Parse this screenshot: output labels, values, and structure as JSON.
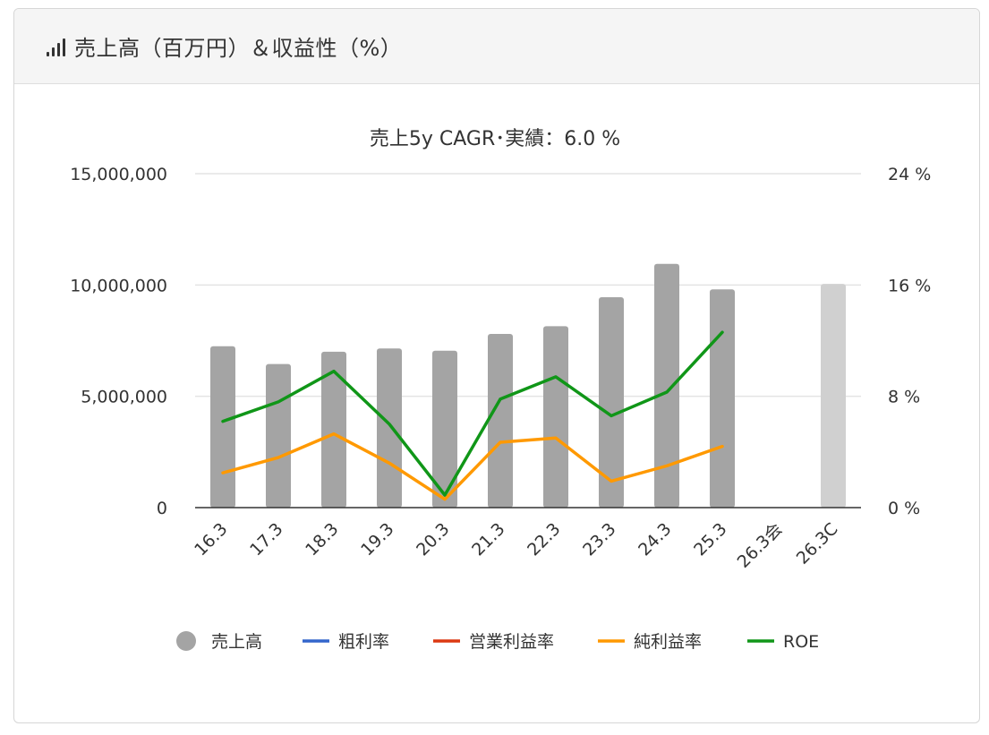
{
  "header": {
    "title": "売上高（百万円）＆収益性（%）",
    "icon": "signal-bars-icon"
  },
  "chart_data": {
    "type": "bar",
    "title": "売上5y CAGR･実績：6.0 %",
    "categories": [
      "16.3",
      "17.3",
      "18.3",
      "19.3",
      "20.3",
      "21.3",
      "22.3",
      "23.3",
      "24.3",
      "25.3",
      "26.3会",
      "26.3C"
    ],
    "left_axis": {
      "min": 0,
      "max": 15000000,
      "ticks": [
        "0",
        "5,000,000",
        "10,000,000",
        "15,000,000"
      ]
    },
    "right_axis": {
      "min": 0,
      "max": 24,
      "ticks": [
        "0 %",
        "8 %",
        "16 %",
        "24 %"
      ]
    },
    "bar_series": {
      "name": "売上高",
      "values": [
        7250000,
        6450000,
        7000000,
        7150000,
        7050000,
        7800000,
        8150000,
        9450000,
        10950000,
        9800000,
        null,
        10050000
      ],
      "colors": [
        "#a4a4a4",
        "#a4a4a4",
        "#a4a4a4",
        "#a4a4a4",
        "#a4a4a4",
        "#a4a4a4",
        "#a4a4a4",
        "#a4a4a4",
        "#a4a4a4",
        "#a4a4a4",
        "#a4a4a4",
        "#d0d0d0"
      ]
    },
    "line_series": [
      {
        "name": "粗利率",
        "color": "#3366cc",
        "values": [
          null,
          null,
          null,
          null,
          null,
          null,
          null,
          null,
          null,
          null,
          null,
          null
        ]
      },
      {
        "name": "営業利益率",
        "color": "#dc3912",
        "values": [
          null,
          null,
          null,
          null,
          null,
          null,
          null,
          null,
          null,
          null,
          null,
          null
        ]
      },
      {
        "name": "純利益率",
        "color": "#ff9900",
        "values": [
          2.5,
          3.6,
          5.3,
          3.2,
          0.6,
          4.7,
          5.0,
          1.9,
          3.0,
          4.4,
          null,
          null
        ]
      },
      {
        "name": "ROE",
        "color": "#109618",
        "values": [
          6.2,
          7.6,
          9.8,
          6.0,
          0.9,
          7.8,
          9.4,
          6.6,
          8.3,
          12.6,
          null,
          null
        ]
      }
    ],
    "legend": [
      {
        "label": "売上高",
        "shape": "circle",
        "color": "#a4a4a4"
      },
      {
        "label": "粗利率",
        "shape": "line",
        "color": "#3366cc"
      },
      {
        "label": "営業利益率",
        "shape": "line",
        "color": "#dc3912"
      },
      {
        "label": "純利益率",
        "shape": "line",
        "color": "#ff9900"
      },
      {
        "label": "ROE",
        "shape": "line",
        "color": "#109618"
      }
    ],
    "legend_position": "bottom",
    "grid": true
  }
}
